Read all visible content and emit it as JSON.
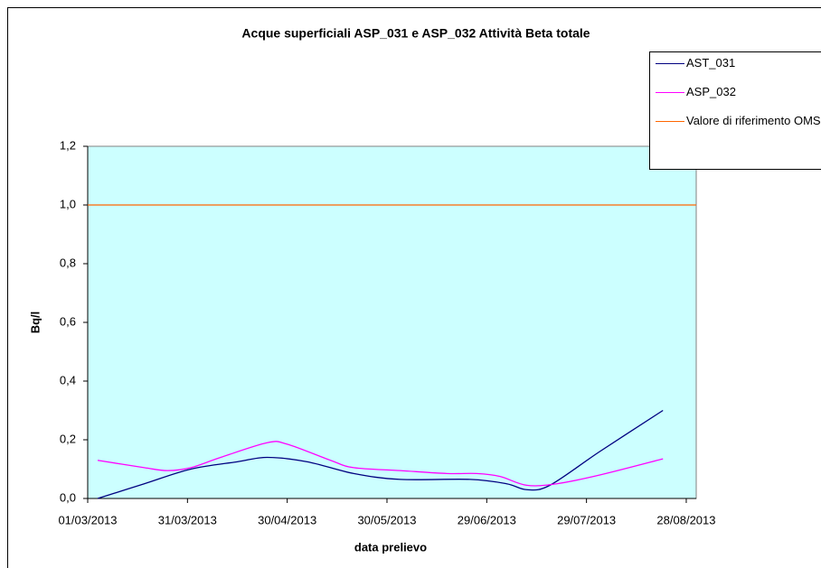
{
  "chart_data": {
    "type": "line",
    "title": "Acque superficiali ASP_031 e ASP_032 Attività Beta totale",
    "x_label": "data prelievo",
    "y_label": "Bq/l",
    "xlim": [
      "01/03/2013",
      "31/08/2013"
    ],
    "xticks": [
      "01/03/2013",
      "31/03/2013",
      "30/04/2013",
      "30/05/2013",
      "29/06/2013",
      "29/07/2013",
      "28/08/2013"
    ],
    "ylim": [
      0,
      1.2
    ],
    "yticks": [
      {
        "value": 0,
        "label": "0,0"
      },
      {
        "value": 0.2,
        "label": "0,2"
      },
      {
        "value": 0.4,
        "label": "0,4"
      },
      {
        "value": 0.6,
        "label": "0,6"
      },
      {
        "value": 0.8,
        "label": "0,8"
      },
      {
        "value": 1,
        "label": "1,0"
      },
      {
        "value": 1.2,
        "label": "1,2"
      }
    ],
    "plot_background": "#ccffff",
    "legend": "top-right",
    "series": [
      {
        "name": "AST_031",
        "color": "#000080",
        "x": [
          "04/03/2013",
          "18/03/2013",
          "01/04/2013",
          "15/04/2013",
          "24/04/2013",
          "06/05/2013",
          "20/05/2013",
          "03/06/2013",
          "24/06/2013",
          "05/07/2013",
          "11/07/2013",
          "18/07/2013",
          "02/08/2013",
          "21/08/2013"
        ],
        "values": [
          0.0,
          0.05,
          0.1,
          0.125,
          0.14,
          0.125,
          0.085,
          0.065,
          0.065,
          0.05,
          0.03,
          0.045,
          0.16,
          0.3
        ]
      },
      {
        "name": "ASP_032",
        "color": "#ff00ff",
        "x": [
          "04/03/2013",
          "18/03/2013",
          "25/03/2013",
          "01/04/2013",
          "10/04/2013",
          "24/04/2013",
          "30/04/2013",
          "13/05/2013",
          "20/05/2013",
          "03/06/2013",
          "17/06/2013",
          "26/06/2013",
          "03/07/2013",
          "11/07/2013",
          "20/07/2013",
          "02/08/2013",
          "21/08/2013"
        ],
        "values": [
          0.13,
          0.105,
          0.095,
          0.105,
          0.14,
          0.19,
          0.185,
          0.13,
          0.105,
          0.095,
          0.085,
          0.085,
          0.075,
          0.045,
          0.05,
          0.08,
          0.135
        ]
      },
      {
        "name": "Valore di riferimento OMS",
        "color": "#ff6600",
        "x": [
          "01/03/2013",
          "31/08/2013"
        ],
        "values": [
          1,
          1
        ]
      }
    ]
  }
}
